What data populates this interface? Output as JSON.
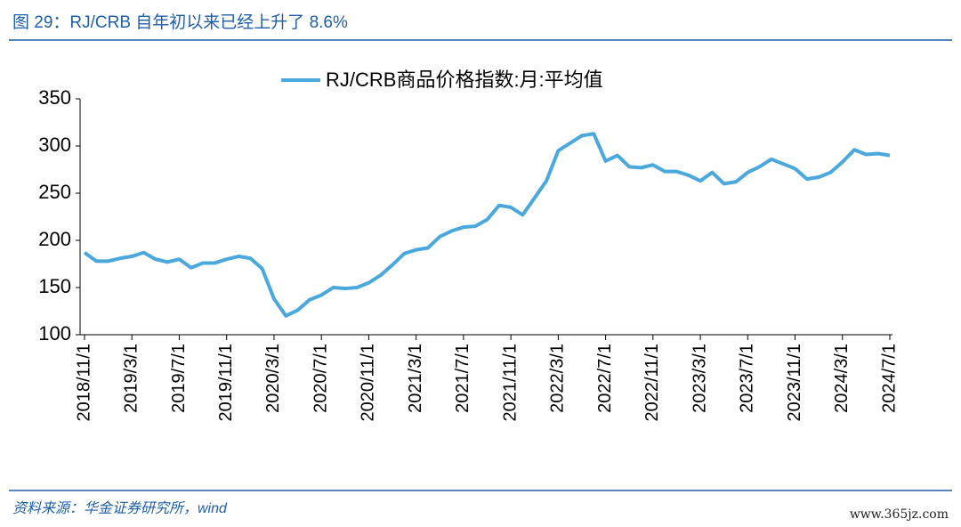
{
  "chart_data": {
    "type": "line",
    "title": "图 29：RJ/CRB 自年初以来已经上升了 8.6%",
    "source": "资料来源：华金证券研究所，wind",
    "watermark": "www.365jz.com",
    "categories": [
      "2018/11/1",
      null,
      null,
      null,
      "2019/3/1",
      null,
      null,
      null,
      "2019/7/1",
      null,
      null,
      null,
      "2019/11/1",
      null,
      null,
      null,
      "2020/3/1",
      null,
      null,
      null,
      "2020/7/1",
      null,
      null,
      null,
      "2020/11/1",
      null,
      null,
      null,
      "2021/3/1",
      null,
      null,
      null,
      "2021/7/1",
      null,
      null,
      null,
      "2021/11/1",
      null,
      null,
      null,
      "2022/3/1",
      null,
      null,
      null,
      "2022/7/1",
      null,
      null,
      null,
      "2022/11/1",
      null,
      null,
      null,
      "2023/3/1",
      null,
      null,
      null,
      "2023/7/1",
      null,
      null,
      null,
      "2023/11/1",
      null,
      null,
      null,
      "2024/3/1",
      null,
      null,
      null,
      "2024/7/1"
    ],
    "series": [
      {
        "name": "RJ/CRB商品价格指数:月:平均值",
        "color": "#4aa8dc",
        "values": [
          187,
          178,
          178,
          181,
          183,
          187,
          180,
          177,
          180,
          171,
          176,
          176,
          180,
          183,
          181,
          170,
          138,
          120,
          126,
          137,
          142,
          150,
          149,
          150,
          155,
          163,
          174,
          186,
          190,
          192,
          204,
          210,
          214,
          215,
          222,
          237,
          235,
          227,
          245,
          263,
          295,
          303,
          311,
          313,
          284,
          290,
          278,
          277,
          280,
          273,
          273,
          269,
          263,
          272,
          260,
          262,
          272,
          278,
          286,
          281,
          276,
          265,
          267,
          272,
          283,
          296,
          291,
          292,
          290
        ]
      }
    ],
    "ylim": [
      100,
      350
    ],
    "yticks": [
      100,
      150,
      200,
      250,
      300,
      350
    ],
    "legend": "top"
  }
}
